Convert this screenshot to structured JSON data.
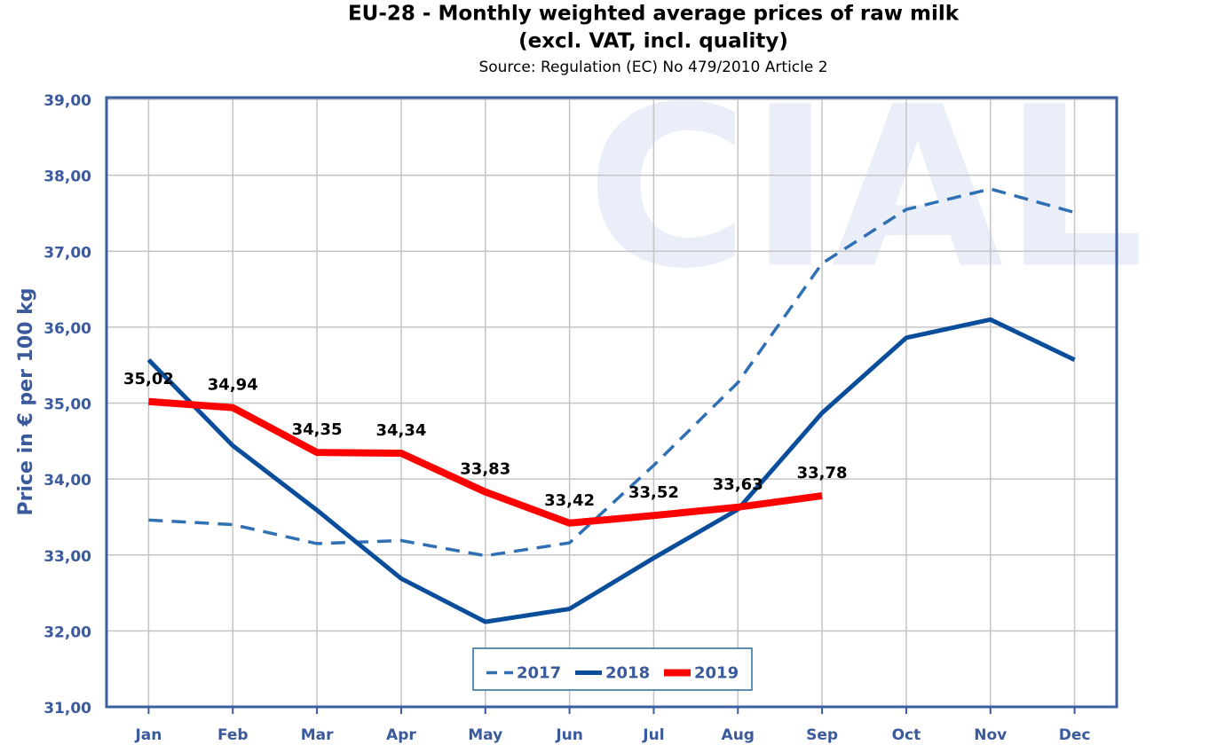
{
  "chart_data": {
    "type": "line",
    "title": "EU-28 - Monthly weighted average prices of raw milk",
    "subtitle": "(excl. VAT, incl. quality)",
    "source": "Source: Regulation (EC) No 479/2010 Article 2",
    "watermark": "CIAL",
    "y_label": "Price in € per 100 kg",
    "categories": [
      "Jan",
      "Feb",
      "Mar",
      "Apr",
      "May",
      "Jun",
      "Jul",
      "Aug",
      "Sep",
      "Oct",
      "Nov",
      "Dec"
    ],
    "series": [
      {
        "name": "2017",
        "color": "#2f6fb3",
        "style": "dashed",
        "values": [
          33.46,
          33.4,
          33.15,
          33.19,
          32.99,
          33.16,
          34.18,
          35.27,
          36.84,
          37.55,
          37.82,
          37.51
        ]
      },
      {
        "name": "2018",
        "color": "#0a4e9b",
        "style": "solid",
        "values": [
          35.57,
          34.44,
          33.59,
          32.69,
          32.12,
          32.29,
          32.96,
          33.6,
          34.87,
          35.86,
          36.1,
          35.57
        ]
      },
      {
        "name": "2019",
        "color": "#ff0000",
        "style": "solid",
        "values": [
          35.02,
          34.94,
          34.35,
          34.34,
          33.83,
          33.42,
          33.52,
          33.63,
          33.78,
          null,
          null,
          null
        ],
        "value_labels": [
          "35,02",
          "34,94",
          "34,35",
          "34,34",
          "33,83",
          "33,42",
          "33,52",
          "33,63",
          "33,78",
          null,
          null,
          null
        ]
      }
    ],
    "ylim": [
      31,
      39
    ],
    "yticks": [
      {
        "value": 31,
        "label": "31,00"
      },
      {
        "value": 32,
        "label": "32,00"
      },
      {
        "value": 33,
        "label": "33,00"
      },
      {
        "value": 34,
        "label": "34,00"
      },
      {
        "value": 35,
        "label": "35,00"
      },
      {
        "value": 36,
        "label": "36,00"
      },
      {
        "value": 37,
        "label": "37,00"
      },
      {
        "value": 38,
        "label": "38,00"
      },
      {
        "value": 39,
        "label": "39,00"
      }
    ],
    "grid": true,
    "legend": "bottom"
  }
}
